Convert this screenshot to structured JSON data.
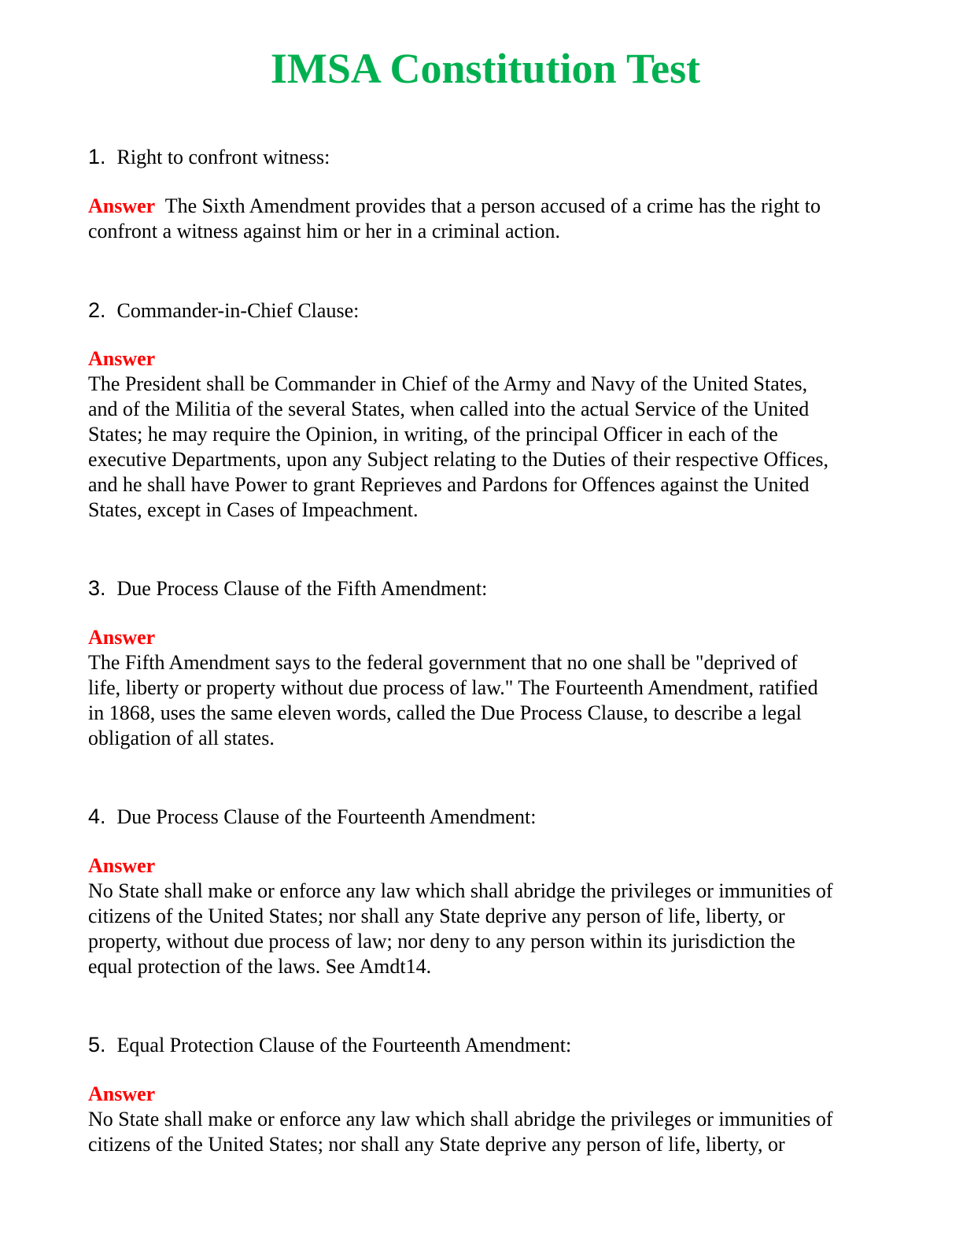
{
  "title": "IMSA Constitution Test",
  "colors": {
    "title": "#00b050",
    "answer_label": "#ff0000",
    "text": "#000000"
  },
  "answer_label": "Answer",
  "questions": [
    {
      "number": "1.",
      "prompt": "Right to confront witness:",
      "answer_lines": [
        "The Sixth Amendment provides that a person accused of a crime has the right to",
        "confront a witness against him or her in a criminal action."
      ]
    },
    {
      "number": "2.",
      "prompt": "Commander-in-Chief Clause:",
      "answer_lines": [
        "The President shall be Commander in Chief of the Army and Navy of the United States,",
        "and of the Militia of the several States, when called into the actual Service of the United",
        "States; he may require the Opinion, in writing, of the principal Officer in each of the",
        "executive Departments, upon any Subject relating to the Duties of their respective Offices,",
        "and he shall have Power to grant Reprieves and Pardons for Offences against the United",
        "States, except in Cases of Impeachment."
      ]
    },
    {
      "number": "3.",
      "prompt": "Due Process Clause of the Fifth Amendment:",
      "answer_lines": [
        "The Fifth Amendment says to the federal government that no one shall be \"deprived of",
        "life, liberty or property without due process of law.\" The Fourteenth Amendment, ratified",
        "in 1868, uses the same eleven words, called the Due Process Clause, to describe a legal",
        "obligation of all states."
      ]
    },
    {
      "number": "4.",
      "prompt": "Due Process Clause of the Fourteenth Amendment:",
      "answer_lines": [
        "No State shall make or enforce any law which shall abridge the privileges or immunities of",
        "citizens of the United States; nor shall any State deprive any person of life, liberty, or",
        "property, without due process of law; nor deny to any person within its jurisdiction the",
        "equal protection of the laws. See Amdt14."
      ]
    },
    {
      "number": "5.",
      "prompt": "Equal Protection Clause of the Fourteenth Amendment:",
      "answer_lines": [
        "No State shall make or enforce any law which shall abridge the privileges or immunities of",
        "citizens of the United States; nor shall any State deprive any person of life, liberty, or"
      ]
    }
  ]
}
